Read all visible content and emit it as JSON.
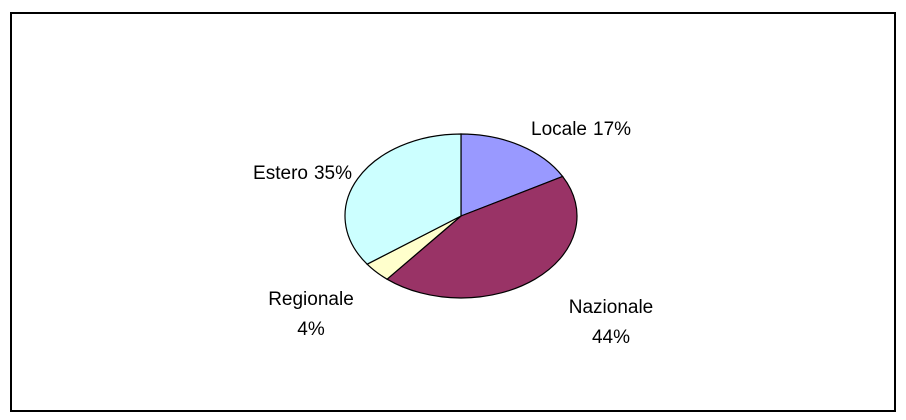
{
  "chart_data": {
    "type": "pie",
    "categories": [
      "Locale",
      "Nazionale",
      "Regionale",
      "Estero"
    ],
    "values": [
      17,
      44,
      4,
      35
    ],
    "value_labels": [
      "17%",
      "44%",
      "4%",
      "35%"
    ],
    "colors": [
      "#9999ff",
      "#993366",
      "#ffffcc",
      "#ccffff"
    ]
  }
}
